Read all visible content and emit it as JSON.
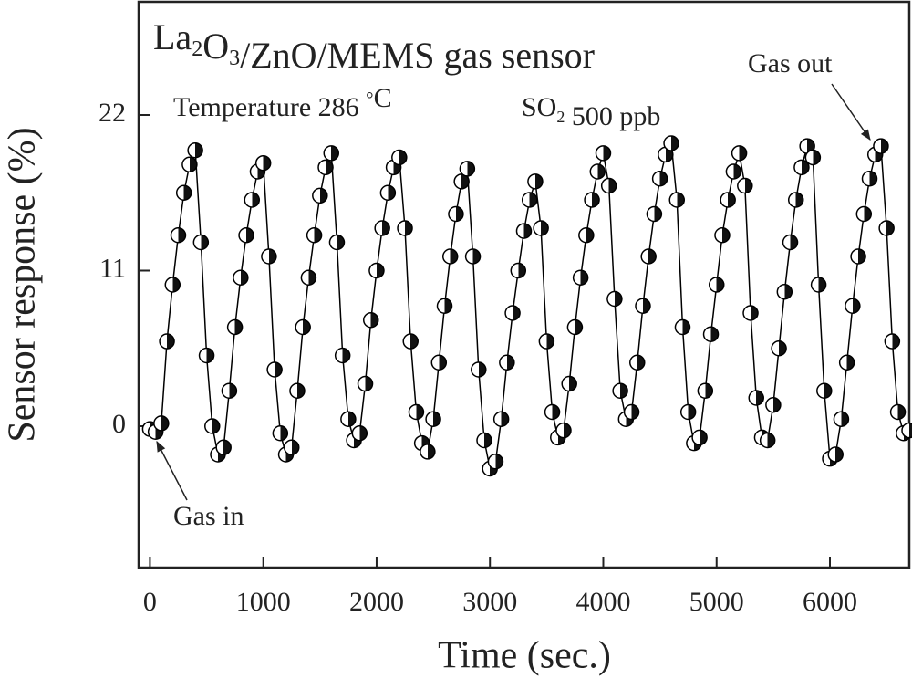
{
  "chart_data": {
    "type": "line",
    "title": "La2O3/ZnO/MEMS gas sensor",
    "annotations": [
      "Temperature 286 °C",
      "SO2 500 ppb",
      "Gas in",
      "Gas out"
    ],
    "x_label": "Time (sec.)",
    "y_label": "Sensor response (%)",
    "xlim": [
      -100,
      6700
    ],
    "xticks": [
      0,
      1000,
      2000,
      3000,
      4000,
      5000,
      6000
    ],
    "ylim": [
      -10,
      30
    ],
    "yticks": [
      0,
      11,
      22
    ],
    "x": [
      0,
      50,
      100,
      150,
      200,
      250,
      300,
      350,
      400,
      450,
      500,
      550,
      600,
      650,
      700,
      750,
      800,
      850,
      900,
      950,
      1000,
      1050,
      1100,
      1150,
      1200,
      1250,
      1300,
      1350,
      1400,
      1450,
      1500,
      1550,
      1600,
      1650,
      1700,
      1750,
      1800,
      1850,
      1900,
      1950,
      2000,
      2050,
      2100,
      2150,
      2200,
      2250,
      2300,
      2350,
      2400,
      2450,
      2500,
      2550,
      2600,
      2650,
      2700,
      2750,
      2800,
      2850,
      2900,
      2950,
      3000,
      3050,
      3100,
      3150,
      3200,
      3250,
      3300,
      3350,
      3400,
      3450,
      3500,
      3550,
      3600,
      3650,
      3700,
      3750,
      3800,
      3850,
      3900,
      3950,
      4000,
      4050,
      4100,
      4150,
      4200,
      4250,
      4300,
      4350,
      4400,
      4450,
      4500,
      4550,
      4600,
      4650,
      4700,
      4750,
      4800,
      4850,
      4900,
      4950,
      5000,
      5050,
      5100,
      5150,
      5200,
      5250,
      5300,
      5350,
      5400,
      5450,
      5500,
      5550,
      5600,
      5650,
      5700,
      5750,
      5800,
      5850,
      5900,
      5950,
      6000,
      6050,
      6100,
      6150,
      6200,
      6250,
      6300,
      6350,
      6400,
      6450,
      6500,
      6550,
      6600,
      6650,
      6700
    ],
    "series": [
      {
        "color": "#000000",
        "values": [
          -0.2,
          -0.4,
          0.2,
          6,
          10,
          13.5,
          16.5,
          18.5,
          19.5,
          13,
          5,
          0,
          -2,
          -1.5,
          2.5,
          7,
          10.5,
          13.5,
          16,
          18,
          18.6,
          12,
          4,
          -0.5,
          -2,
          -1.5,
          2.5,
          7,
          10.5,
          13.5,
          16.3,
          18.3,
          19.3,
          13,
          5,
          0.5,
          -1,
          -0.5,
          3,
          7.5,
          11,
          14,
          16.5,
          18.3,
          19,
          14,
          6,
          1,
          -1.2,
          -1.8,
          0.5,
          4.5,
          8.5,
          12,
          15,
          17.3,
          18.2,
          12,
          4,
          -1,
          -3,
          -2.5,
          0.5,
          4.5,
          8,
          11,
          13.8,
          16,
          17.3,
          14,
          6,
          1,
          -0.8,
          -0.3,
          3,
          7,
          10.5,
          13.5,
          16,
          18,
          19.3,
          17,
          9,
          2.5,
          0.5,
          1,
          4.5,
          8.5,
          12,
          15,
          17.5,
          19.2,
          20,
          16,
          7,
          1,
          -1.2,
          -0.8,
          2.5,
          6.5,
          10,
          13.5,
          16,
          18,
          19.3,
          17,
          8,
          2,
          -0.8,
          -1,
          1.5,
          5.5,
          9.5,
          13,
          16,
          18.3,
          19.8,
          19,
          10,
          2.5,
          -2.3,
          -2,
          0.5,
          4.5,
          8.5,
          12,
          15,
          17.5,
          19.2,
          19.8,
          14,
          6,
          1,
          -0.5,
          -0.3
        ]
      }
    ]
  }
}
